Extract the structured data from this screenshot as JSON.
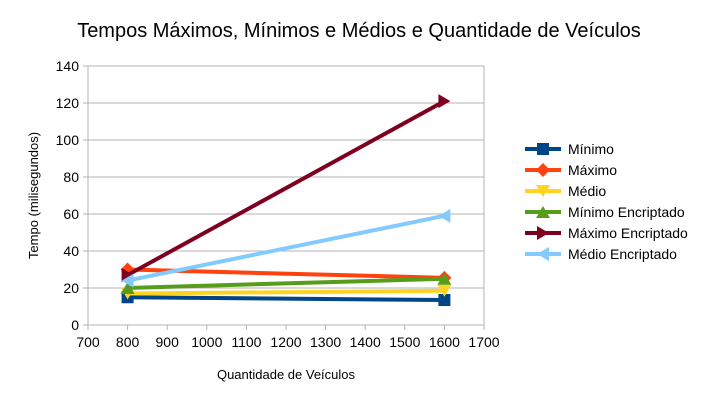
{
  "chart_data": {
    "type": "line",
    "title": "Tempos Máximos, Mínimos e Médios e Quantidade de Veículos",
    "xlabel": "Quantidade de Veículos",
    "ylabel": "Tempo (milisegundos)",
    "xlim": [
      700,
      1700
    ],
    "ylim": [
      0,
      140
    ],
    "x_ticks": [
      700,
      800,
      900,
      1000,
      1100,
      1200,
      1300,
      1400,
      1500,
      1600,
      1700
    ],
    "y_ticks": [
      0,
      20,
      40,
      60,
      80,
      100,
      120,
      140
    ],
    "grid": "horizontal",
    "legend_position": "right",
    "series": [
      {
        "name": "Mínimo",
        "x": [
          800,
          1600
        ],
        "y": [
          15,
          13.5
        ],
        "color": "#004586",
        "marker": "square"
      },
      {
        "name": "Máximo",
        "x": [
          800,
          1600
        ],
        "y": [
          30,
          25.5
        ],
        "color": "#ff420e",
        "marker": "diamond"
      },
      {
        "name": "Médio",
        "x": [
          800,
          1600
        ],
        "y": [
          17,
          18.5
        ],
        "color": "#ffd320",
        "marker": "triangle-down"
      },
      {
        "name": "Mínimo Encriptado",
        "x": [
          800,
          1600
        ],
        "y": [
          20,
          25
        ],
        "color": "#579d1c",
        "marker": "triangle-up"
      },
      {
        "name": "Máximo Encriptado",
        "x": [
          800,
          1600
        ],
        "y": [
          27,
          121
        ],
        "color": "#7e0021",
        "marker": "triangle-right"
      },
      {
        "name": "Médio Encriptado",
        "x": [
          800,
          1600
        ],
        "y": [
          24,
          59
        ],
        "color": "#83caff",
        "marker": "triangle-left"
      }
    ]
  }
}
